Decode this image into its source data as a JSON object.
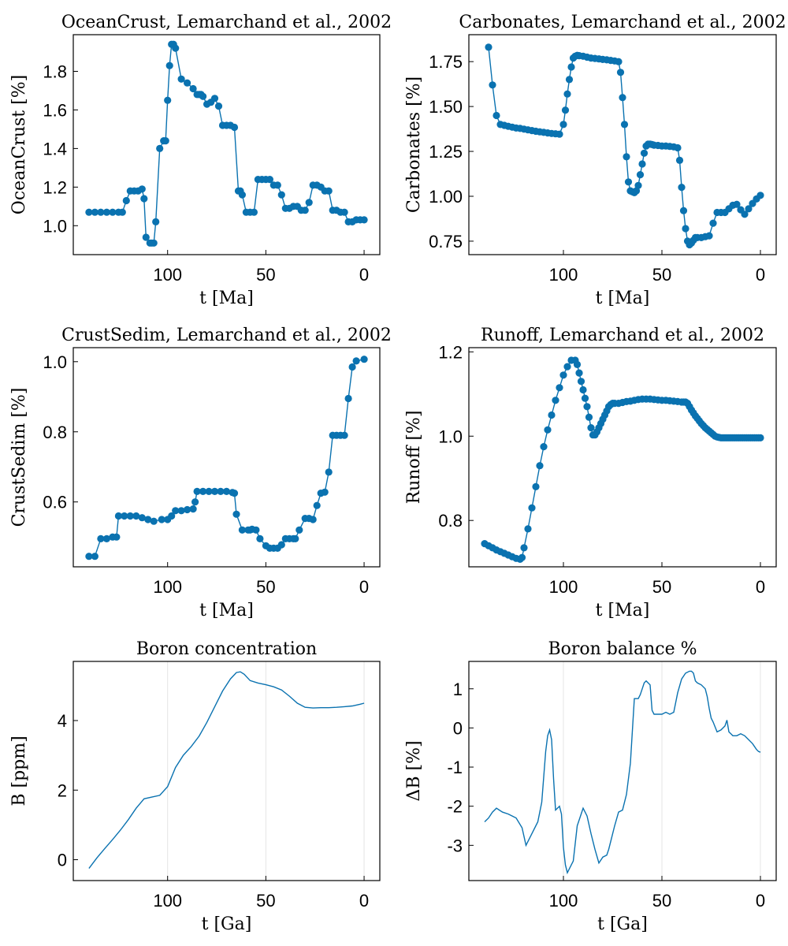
{
  "chart_data": [
    {
      "id": "ocean",
      "type": "line",
      "markers": true,
      "title": "OceanCrust, Lemarchand et al., 2002",
      "xlabel": "t [Ma]",
      "ylabel": "OceanCrust [%]",
      "xlim": [
        148,
        -8
      ],
      "ylim": [
        0.85,
        1.99
      ],
      "xticks": [
        100,
        50,
        0
      ],
      "yticks": [
        1.0,
        1.2,
        1.4,
        1.6,
        1.8
      ],
      "ytick_labels": [
        "1.0",
        "1.2",
        "1.4",
        "1.6",
        "1.8"
      ],
      "grid": false,
      "series": [
        {
          "x": [
            140,
            137,
            134,
            131,
            128,
            125,
            123,
            121,
            119,
            117,
            115,
            113,
            112,
            111,
            109,
            108,
            107,
            106,
            104,
            102,
            101,
            100,
            99,
            98,
            97,
            96,
            93,
            90,
            87,
            85,
            84,
            83,
            82,
            80,
            78,
            76,
            74,
            72,
            70,
            68,
            66,
            64,
            63,
            62,
            60,
            58,
            56,
            54,
            52,
            50,
            48,
            46,
            44,
            42,
            40,
            38,
            36,
            34,
            32,
            30,
            28,
            26,
            24,
            22,
            20,
            18,
            16,
            14,
            12,
            10,
            8,
            6,
            4,
            2,
            0
          ],
          "y": [
            1.07,
            1.07,
            1.07,
            1.07,
            1.07,
            1.07,
            1.07,
            1.13,
            1.18,
            1.18,
            1.18,
            1.19,
            1.14,
            0.94,
            0.91,
            0.91,
            0.91,
            1.02,
            1.4,
            1.44,
            1.44,
            1.65,
            1.83,
            1.94,
            1.94,
            1.92,
            1.76,
            1.74,
            1.71,
            1.68,
            1.68,
            1.68,
            1.67,
            1.63,
            1.64,
            1.66,
            1.62,
            1.52,
            1.52,
            1.52,
            1.51,
            1.18,
            1.18,
            1.16,
            1.07,
            1.07,
            1.07,
            1.24,
            1.24,
            1.24,
            1.24,
            1.21,
            1.21,
            1.16,
            1.09,
            1.09,
            1.1,
            1.1,
            1.08,
            1.08,
            1.12,
            1.21,
            1.21,
            1.2,
            1.18,
            1.18,
            1.08,
            1.08,
            1.07,
            1.07,
            1.02,
            1.02,
            1.03,
            1.03,
            1.03
          ]
        }
      ]
    },
    {
      "id": "carb",
      "type": "line",
      "markers": true,
      "title": "Carbonates, Lemarchand et al., 2002",
      "xlabel": "t [Ma]",
      "ylabel": "Carbonates [%]",
      "xlim": [
        148,
        -8
      ],
      "ylim": [
        0.675,
        1.9
      ],
      "xticks": [
        100,
        50,
        0
      ],
      "yticks": [
        0.75,
        1.0,
        1.25,
        1.5,
        1.75
      ],
      "ytick_labels": [
        "0.75",
        "1.00",
        "1.25",
        "1.50",
        "1.75"
      ],
      "grid": false,
      "series": [
        {
          "x": [
            138,
            136,
            134,
            132,
            130,
            128,
            126,
            124,
            122,
            120,
            118,
            116,
            114,
            112,
            110,
            108,
            106,
            104,
            102,
            100,
            99,
            98,
            97,
            96,
            95,
            94,
            93,
            92,
            90,
            88,
            86,
            84,
            82,
            80,
            78,
            76,
            74,
            72,
            71,
            70,
            69,
            68,
            67,
            66,
            65,
            64,
            63,
            62,
            61,
            60,
            59,
            58,
            57,
            56,
            55,
            54,
            52,
            50,
            48,
            46,
            44,
            42,
            41,
            40,
            39,
            38,
            37,
            36,
            35,
            34,
            33,
            32,
            30,
            28,
            26,
            24,
            22,
            20,
            18,
            16,
            14,
            12,
            10,
            8,
            6,
            4,
            2,
            0
          ],
          "y": [
            1.83,
            1.62,
            1.45,
            1.4,
            1.395,
            1.39,
            1.385,
            1.38,
            1.378,
            1.374,
            1.37,
            1.366,
            1.362,
            1.359,
            1.356,
            1.353,
            1.35,
            1.348,
            1.346,
            1.4,
            1.48,
            1.57,
            1.65,
            1.72,
            1.77,
            1.78,
            1.785,
            1.783,
            1.78,
            1.775,
            1.77,
            1.768,
            1.765,
            1.762,
            1.76,
            1.757,
            1.754,
            1.75,
            1.69,
            1.55,
            1.4,
            1.22,
            1.08,
            1.03,
            1.025,
            1.02,
            1.03,
            1.06,
            1.12,
            1.18,
            1.24,
            1.28,
            1.29,
            1.29,
            1.288,
            1.285,
            1.283,
            1.28,
            1.28,
            1.278,
            1.275,
            1.27,
            1.2,
            1.05,
            0.92,
            0.82,
            0.75,
            0.73,
            0.74,
            0.755,
            0.77,
            0.77,
            0.77,
            0.775,
            0.78,
            0.85,
            0.91,
            0.91,
            0.91,
            0.93,
            0.95,
            0.955,
            0.925,
            0.9,
            0.93,
            0.96,
            0.985,
            1.005
          ]
        }
      ]
    },
    {
      "id": "crust",
      "type": "line",
      "markers": true,
      "title": "CrustSedim, Lemarchand et al., 2002",
      "xlabel": "t [Ma]",
      "ylabel": "CrustSedim [%]",
      "xlim": [
        148,
        -8
      ],
      "ylim": [
        0.415,
        1.04
      ],
      "xticks": [
        100,
        50,
        0
      ],
      "yticks": [
        0.6,
        0.8,
        1.0
      ],
      "ytick_labels": [
        "0.6",
        "0.8",
        "1.0"
      ],
      "grid": false,
      "series": [
        {
          "x": [
            140,
            137,
            134,
            131,
            128,
            126,
            125,
            122,
            119,
            116,
            113,
            110,
            107,
            103,
            100,
            98,
            96,
            93,
            90,
            87,
            86,
            85,
            82,
            79,
            76,
            73,
            70,
            67,
            66,
            65,
            62,
            59,
            58,
            57,
            55,
            53,
            50,
            48,
            46,
            44,
            42,
            40,
            38,
            36,
            35,
            33,
            30,
            28,
            26,
            24,
            22,
            20,
            18,
            16,
            14,
            12,
            10,
            8,
            6,
            4,
            0
          ],
          "y": [
            0.445,
            0.445,
            0.495,
            0.495,
            0.5,
            0.5,
            0.56,
            0.56,
            0.56,
            0.56,
            0.555,
            0.55,
            0.545,
            0.55,
            0.55,
            0.56,
            0.575,
            0.575,
            0.578,
            0.58,
            0.6,
            0.63,
            0.63,
            0.63,
            0.63,
            0.63,
            0.63,
            0.627,
            0.625,
            0.565,
            0.52,
            0.52,
            0.52,
            0.522,
            0.52,
            0.495,
            0.475,
            0.468,
            0.468,
            0.468,
            0.478,
            0.495,
            0.495,
            0.495,
            0.495,
            0.52,
            0.553,
            0.553,
            0.55,
            0.59,
            0.625,
            0.628,
            0.685,
            0.79,
            0.79,
            0.79,
            0.79,
            0.895,
            0.985,
            1.002,
            1.007
          ]
        }
      ]
    },
    {
      "id": "runoff",
      "type": "line",
      "markers": true,
      "title": "Runoff, Lemarchand et al., 2002",
      "xlabel": "t [Ma]",
      "ylabel": "Runoff [%]",
      "xlim": [
        148,
        -8
      ],
      "ylim": [
        0.69,
        1.21
      ],
      "xticks": [
        100,
        50,
        0
      ],
      "yticks": [
        0.8,
        1.0,
        1.2
      ],
      "ytick_labels": [
        "0.8",
        "1.0",
        "1.2"
      ],
      "grid": false,
      "series": [
        {
          "x": [
            140,
            138,
            136,
            134,
            132,
            130,
            128,
            126,
            124,
            122,
            121,
            120,
            118,
            116,
            114,
            112,
            110,
            108,
            106,
            104,
            102,
            100,
            98,
            96,
            94,
            93,
            92,
            91,
            90,
            89,
            88,
            87,
            86,
            85,
            84,
            83,
            82,
            81,
            80,
            79,
            78,
            77,
            76,
            75,
            74,
            72,
            70,
            68,
            66,
            64,
            62,
            60,
            58,
            56,
            54,
            52,
            50,
            48,
            46,
            44,
            42,
            40,
            39,
            38,
            37,
            36,
            35,
            34,
            33,
            32,
            31,
            30,
            29,
            28,
            27,
            26,
            25,
            24,
            23,
            22,
            21,
            20,
            19,
            18,
            17,
            16,
            15,
            14,
            13,
            12,
            11,
            10,
            9,
            8,
            7,
            6,
            5,
            4,
            3,
            2,
            1,
            0
          ],
          "y": [
            0.745,
            0.74,
            0.735,
            0.73,
            0.726,
            0.722,
            0.718,
            0.714,
            0.71,
            0.708,
            0.712,
            0.735,
            0.78,
            0.83,
            0.88,
            0.93,
            0.975,
            1.015,
            1.05,
            1.085,
            1.115,
            1.145,
            1.165,
            1.18,
            1.18,
            1.17,
            1.15,
            1.13,
            1.11,
            1.09,
            1.07,
            1.045,
            1.02,
            1.003,
            1.003,
            1.01,
            1.02,
            1.03,
            1.04,
            1.05,
            1.06,
            1.07,
            1.075,
            1.078,
            1.078,
            1.078,
            1.08,
            1.082,
            1.083,
            1.085,
            1.087,
            1.088,
            1.088,
            1.088,
            1.087,
            1.086,
            1.085,
            1.085,
            1.084,
            1.083,
            1.082,
            1.081,
            1.081,
            1.081,
            1.078,
            1.07,
            1.062,
            1.055,
            1.048,
            1.042,
            1.036,
            1.03,
            1.025,
            1.02,
            1.016,
            1.012,
            1.008,
            1.004,
            1.0,
            0.998,
            0.997,
            0.996,
            0.996,
            0.996,
            0.996,
            0.996,
            0.996,
            0.996,
            0.996,
            0.996,
            0.996,
            0.996,
            0.996,
            0.996,
            0.996,
            0.996,
            0.996,
            0.996,
            0.996,
            0.996,
            0.996,
            0.996
          ]
        }
      ]
    },
    {
      "id": "boron",
      "type": "line",
      "markers": false,
      "title": "Boron concentration",
      "xlabel": "t [Ga]",
      "ylabel": "B [ppm]",
      "xlim": [
        148,
        -8
      ],
      "ylim": [
        -0.6,
        5.7
      ],
      "xticks": [
        100,
        50,
        0
      ],
      "yticks": [
        0,
        2,
        4
      ],
      "ytick_labels": [
        "0",
        "2",
        "4"
      ],
      "grid": true,
      "series": [
        {
          "x": [
            140,
            136,
            132,
            128,
            124,
            120,
            116,
            112,
            108,
            104,
            100,
            96,
            92,
            88,
            84,
            80,
            76,
            72,
            68,
            65,
            63,
            61,
            58,
            54,
            50,
            46,
            42,
            38,
            34,
            30,
            26,
            22,
            18,
            14,
            10,
            6,
            2,
            0
          ],
          "y": [
            -0.25,
            0.05,
            0.32,
            0.58,
            0.85,
            1.15,
            1.48,
            1.75,
            1.8,
            1.85,
            2.1,
            2.65,
            3.0,
            3.25,
            3.55,
            3.95,
            4.4,
            4.85,
            5.2,
            5.38,
            5.4,
            5.33,
            5.15,
            5.08,
            5.03,
            4.97,
            4.88,
            4.7,
            4.5,
            4.38,
            4.36,
            4.37,
            4.37,
            4.38,
            4.4,
            4.42,
            4.47,
            4.5
          ]
        }
      ]
    },
    {
      "id": "balance",
      "type": "line",
      "markers": false,
      "title": "Boron balance %",
      "xlabel": "t [Ga]",
      "ylabel": "ΔB [%]",
      "xlim": [
        148,
        -8
      ],
      "ylim": [
        -3.9,
        1.7
      ],
      "xticks": [
        100,
        50,
        0
      ],
      "yticks": [
        -3,
        -2,
        -1,
        0,
        1
      ],
      "ytick_labels": [
        "-3",
        "-2",
        "-1",
        "0",
        "1"
      ],
      "grid": true,
      "series": [
        {
          "x": [
            140,
            138,
            136,
            134,
            131,
            128,
            126,
            124,
            121,
            119,
            116,
            113,
            111,
            109,
            108,
            107,
            106,
            105,
            104,
            102,
            101,
            100,
            99,
            98,
            97,
            95,
            93,
            91,
            90,
            88,
            86,
            84,
            82,
            80,
            78,
            77,
            76,
            74,
            72,
            70,
            68,
            66,
            64,
            62,
            61,
            60,
            59,
            58,
            57,
            56,
            55,
            54,
            52,
            50,
            48,
            46,
            44,
            42,
            40,
            38,
            36,
            35,
            34,
            33,
            32,
            30,
            28,
            27,
            26,
            25,
            24,
            22,
            20,
            18,
            17,
            16,
            15,
            14,
            12,
            10,
            8,
            6,
            4,
            2,
            1,
            0
          ],
          "y": [
            -2.4,
            -2.3,
            -2.15,
            -2.05,
            -2.15,
            -2.2,
            -2.25,
            -2.3,
            -2.55,
            -3.0,
            -2.7,
            -2.4,
            -1.9,
            -0.6,
            -0.2,
            -0.05,
            -0.3,
            -1.3,
            -2.1,
            -2.0,
            -2.2,
            -3.05,
            -3.5,
            -3.7,
            -3.6,
            -3.4,
            -2.5,
            -2.2,
            -2.05,
            -2.25,
            -2.7,
            -3.1,
            -3.45,
            -3.3,
            -3.25,
            -3.1,
            -2.9,
            -2.5,
            -2.15,
            -2.1,
            -1.7,
            -0.9,
            0.75,
            0.75,
            0.85,
            1.0,
            1.15,
            1.2,
            1.15,
            1.1,
            0.45,
            0.35,
            0.35,
            0.35,
            0.4,
            0.35,
            0.4,
            0.9,
            1.25,
            1.4,
            1.45,
            1.45,
            1.4,
            1.2,
            1.15,
            1.1,
            1.0,
            0.8,
            0.5,
            0.25,
            0.15,
            -0.1,
            -0.05,
            0.05,
            0.2,
            -0.1,
            -0.15,
            -0.2,
            -0.2,
            -0.15,
            -0.2,
            -0.3,
            -0.4,
            -0.55,
            -0.6,
            -0.62
          ]
        }
      ]
    }
  ]
}
